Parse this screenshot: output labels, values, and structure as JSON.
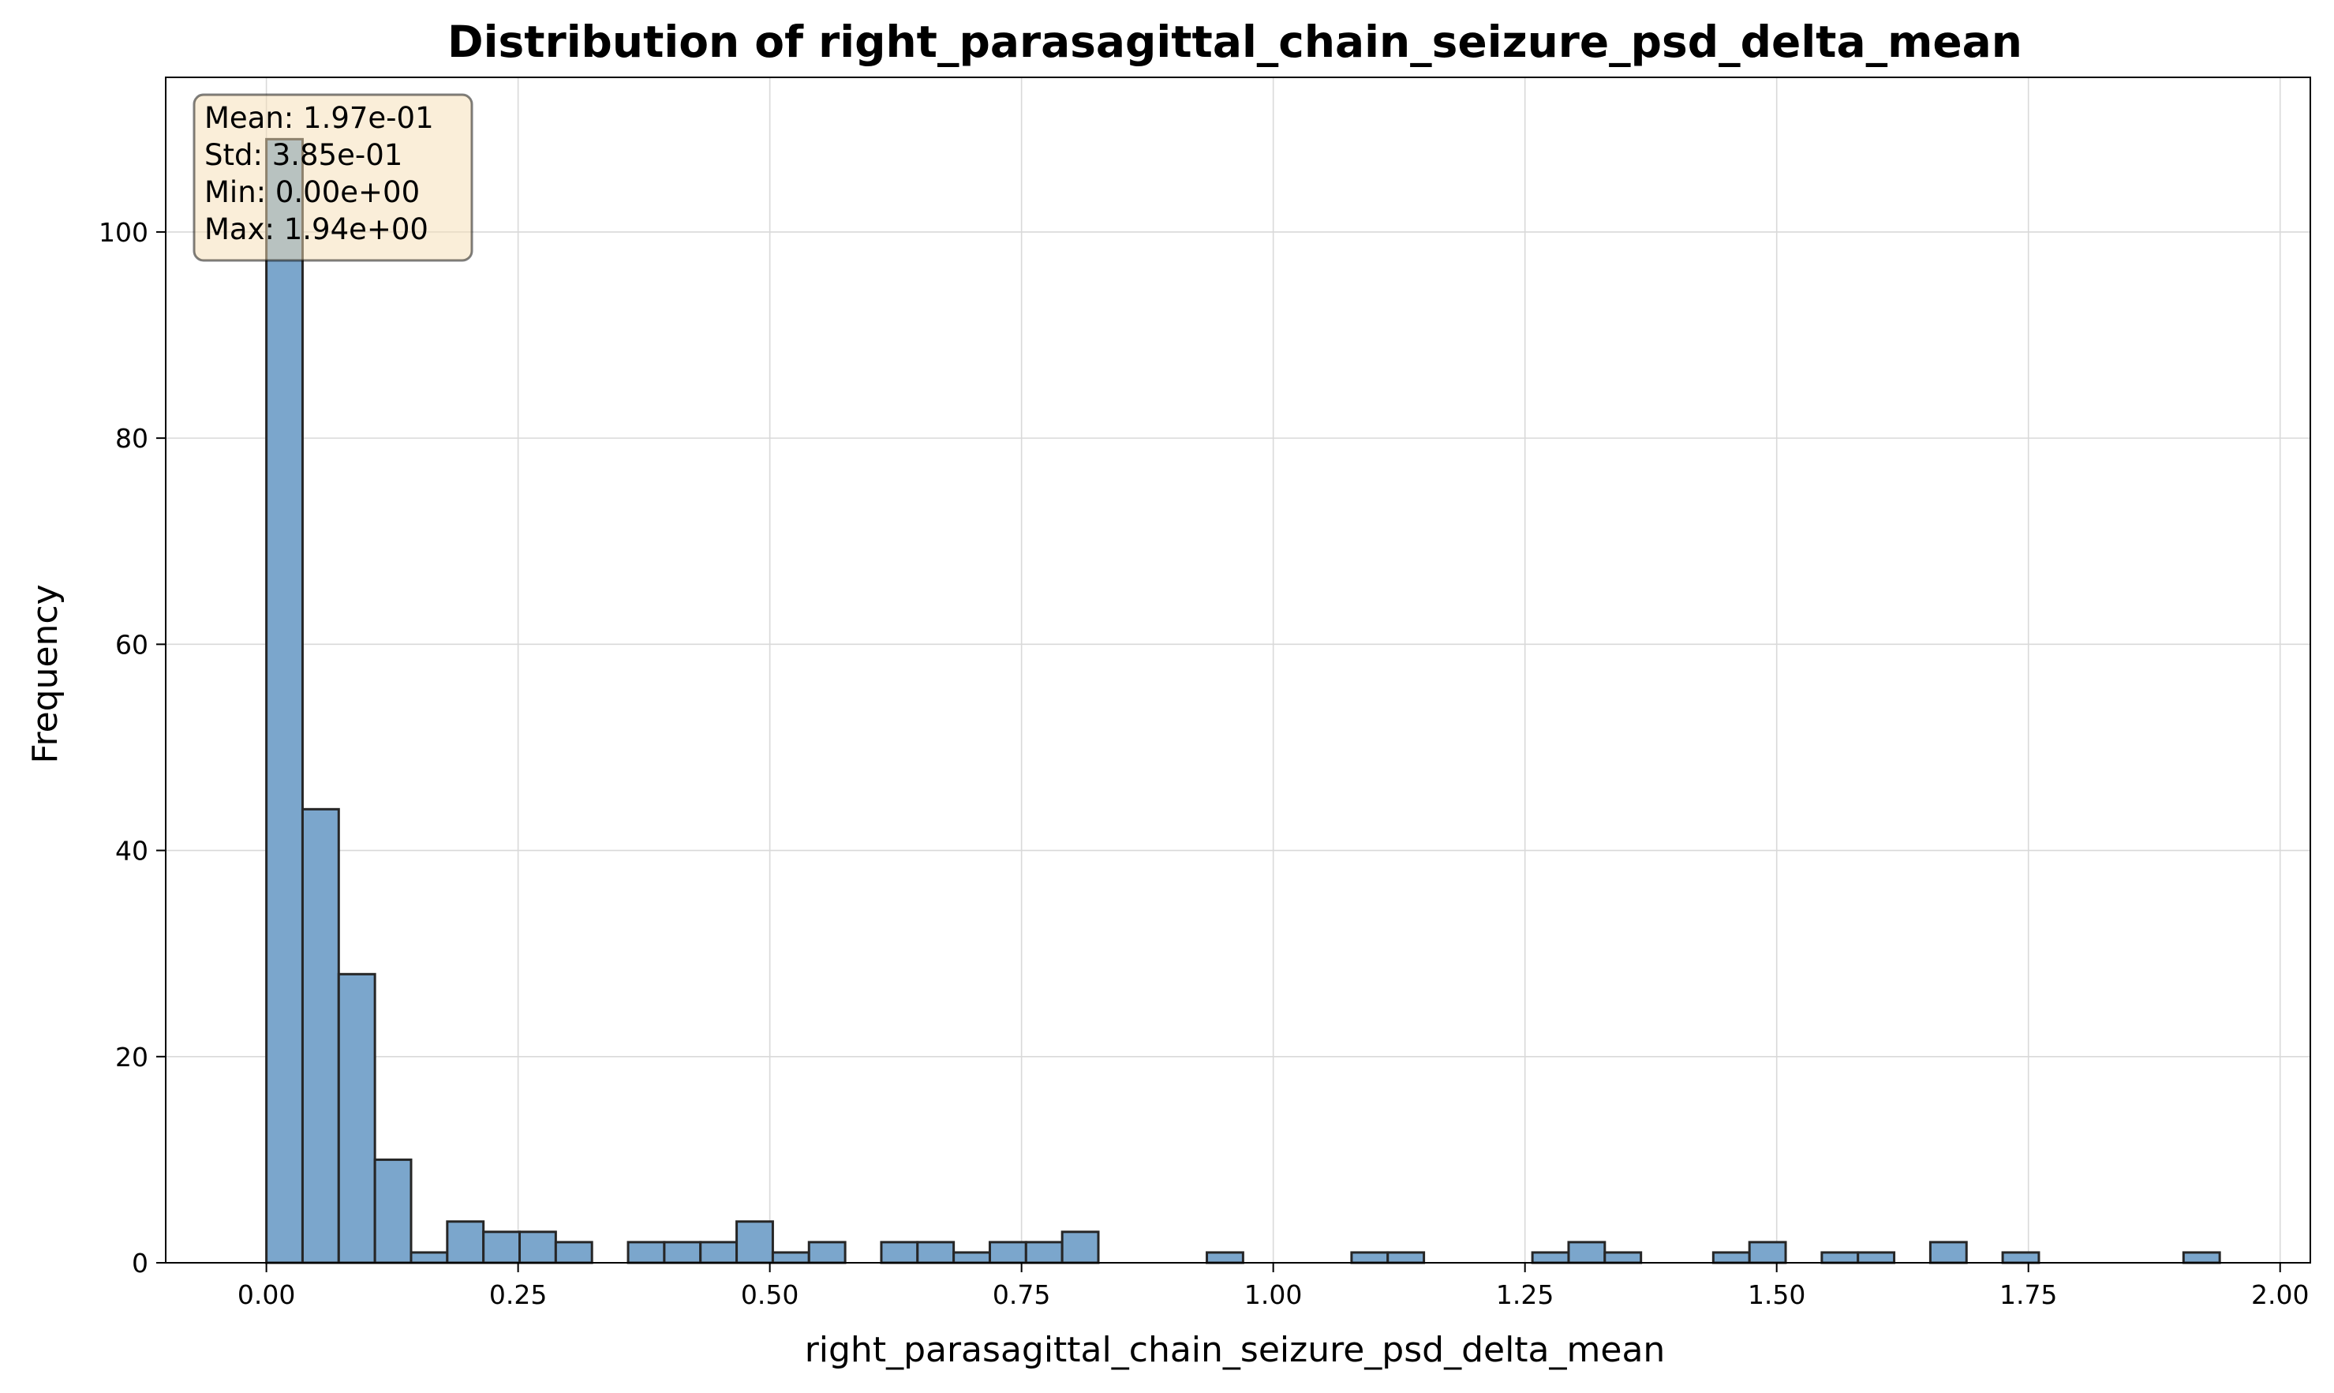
{
  "chart_data": {
    "type": "bar",
    "subtype": "histogram",
    "title": "Distribution of right_parasagittal_chain_seizure_psd_delta_mean",
    "xlabel": "right_parasagittal_chain_seizure_psd_delta_mean",
    "ylabel": "Frequency",
    "xlim": [
      -0.1,
      2.03
    ],
    "ylim": [
      0,
      115
    ],
    "x_ticks": [
      "0.00",
      "0.25",
      "0.50",
      "0.75",
      "1.00",
      "1.25",
      "1.50",
      "1.75",
      "2.00"
    ],
    "y_ticks": [
      "0",
      "20",
      "40",
      "60",
      "80",
      "100"
    ],
    "grid": true,
    "bin_start": 0.0,
    "bin_end": 1.94,
    "bin_count": 54,
    "counts": [
      109,
      44,
      28,
      10,
      1,
      4,
      3,
      3,
      2,
      0,
      2,
      2,
      2,
      4,
      1,
      2,
      0,
      2,
      2,
      1,
      2,
      2,
      3,
      0,
      0,
      0,
      1,
      0,
      0,
      0,
      1,
      1,
      0,
      0,
      0,
      1,
      2,
      1,
      0,
      0,
      1,
      2,
      0,
      1,
      1,
      0,
      2,
      0,
      1,
      0,
      0,
      0,
      0,
      1
    ],
    "colors": {
      "bar_fill": "#7ba6cc",
      "bar_edge": "#262626"
    },
    "stats_box": {
      "position": "top-left",
      "lines": [
        "Mean: 1.97e-01",
        "Std: 3.85e-01",
        "Min: 0.00e+00",
        "Max: 1.94e+00"
      ]
    }
  }
}
